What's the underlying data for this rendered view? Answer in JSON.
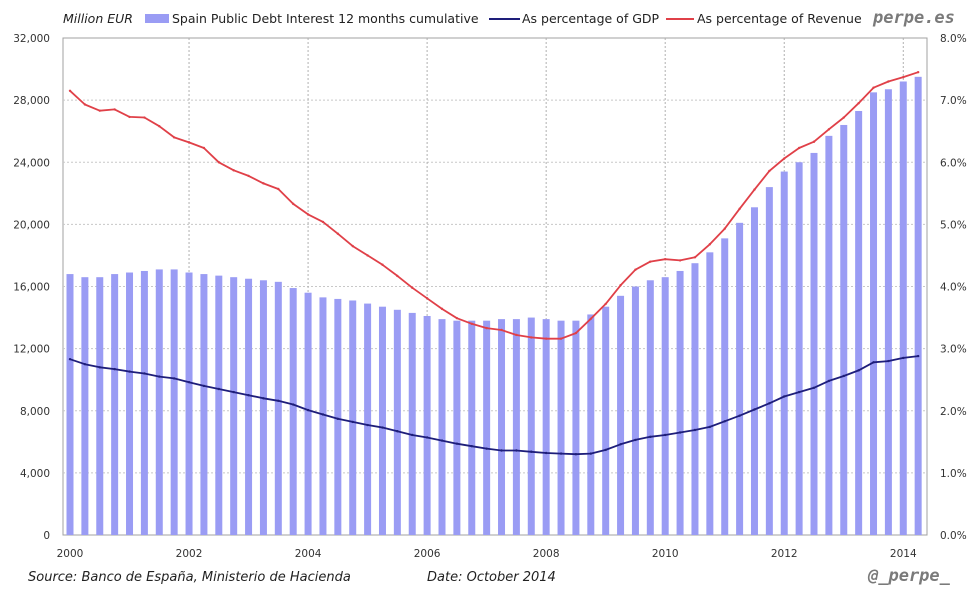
{
  "chart_data": {
    "type": "bar",
    "title": "",
    "unit_label": "Million EUR",
    "brand": "perpe.es",
    "handle": "@_perpe_",
    "source": "Source: Banco de España, Ministerio de Hacienda",
    "date": "Date: October 2014",
    "x_tick_labels": [
      "2000",
      "2002",
      "2004",
      "2006",
      "2008",
      "2010",
      "2012",
      "2014"
    ],
    "y_left": {
      "range": [
        0,
        32000
      ],
      "tick_labels": [
        "0",
        "4,000",
        "8,000",
        "12,000",
        "16,000",
        "20,000",
        "24,000",
        "28,000",
        "32,000"
      ]
    },
    "y_right": {
      "range": [
        0,
        8
      ],
      "tick_labels": [
        "0.0%",
        "1.0%",
        "2.0%",
        "3.0%",
        "4.0%",
        "5.0%",
        "6.0%",
        "7.0%",
        "8.0%"
      ]
    },
    "grid": true,
    "legend_position": "top",
    "colors": {
      "bars": "#9a9cf4",
      "gdp_line": "#1e1e7a",
      "revenue_line": "#e04048",
      "grid": "#c8c8c8",
      "frame": "#a0a0a0"
    },
    "x": [
      "2000Q1",
      "2000Q2",
      "2000Q3",
      "2000Q4",
      "2001Q1",
      "2001Q2",
      "2001Q3",
      "2001Q4",
      "2002Q1",
      "2002Q2",
      "2002Q3",
      "2002Q4",
      "2003Q1",
      "2003Q2",
      "2003Q3",
      "2003Q4",
      "2004Q1",
      "2004Q2",
      "2004Q3",
      "2004Q4",
      "2005Q1",
      "2005Q2",
      "2005Q3",
      "2005Q4",
      "2006Q1",
      "2006Q2",
      "2006Q3",
      "2006Q4",
      "2007Q1",
      "2007Q2",
      "2007Q3",
      "2007Q4",
      "2008Q1",
      "2008Q2",
      "2008Q3",
      "2008Q4",
      "2009Q1",
      "2009Q2",
      "2009Q3",
      "2009Q4",
      "2010Q1",
      "2010Q2",
      "2010Q3",
      "2010Q4",
      "2011Q1",
      "2011Q2",
      "2011Q3",
      "2011Q4",
      "2012Q1",
      "2012Q2",
      "2012Q3",
      "2012Q4",
      "2013Q1",
      "2013Q2",
      "2013Q3",
      "2013Q4",
      "2014Q1",
      "2014Q2"
    ],
    "series": [
      {
        "name": "Spain Public Debt Interest 12 months cumulative",
        "kind": "bar",
        "axis": "left",
        "values": [
          16800,
          16600,
          16600,
          16800,
          16900,
          17000,
          17100,
          17100,
          16900,
          16800,
          16700,
          16600,
          16500,
          16400,
          16300,
          15900,
          15600,
          15300,
          15200,
          15100,
          14900,
          14700,
          14500,
          14300,
          14100,
          13900,
          13800,
          13800,
          13800,
          13900,
          13900,
          14000,
          13900,
          13800,
          13800,
          14200,
          14700,
          15400,
          16000,
          16400,
          16600,
          17000,
          17500,
          18200,
          19100,
          20100,
          21100,
          22400,
          23400,
          24000,
          24600,
          25700,
          26400,
          27300,
          28500,
          28700,
          29200,
          29500
        ]
      },
      {
        "name": "As percentage of GDP",
        "kind": "line",
        "axis": "right",
        "values": [
          2.83,
          2.75,
          2.7,
          2.67,
          2.63,
          2.6,
          2.55,
          2.52,
          2.46,
          2.4,
          2.35,
          2.3,
          2.25,
          2.2,
          2.16,
          2.1,
          2.01,
          1.94,
          1.87,
          1.82,
          1.77,
          1.73,
          1.67,
          1.61,
          1.57,
          1.52,
          1.47,
          1.43,
          1.39,
          1.36,
          1.36,
          1.34,
          1.32,
          1.31,
          1.3,
          1.31,
          1.37,
          1.46,
          1.53,
          1.58,
          1.61,
          1.65,
          1.69,
          1.74,
          1.83,
          1.92,
          2.02,
          2.12,
          2.23,
          2.3,
          2.37,
          2.48,
          2.56,
          2.65,
          2.78,
          2.8,
          2.85,
          2.88
        ]
      },
      {
        "name": "As percentage of Revenue",
        "kind": "line",
        "axis": "right",
        "values": [
          7.15,
          6.93,
          6.83,
          6.85,
          6.73,
          6.72,
          6.58,
          6.4,
          6.32,
          6.23,
          6.0,
          5.87,
          5.78,
          5.66,
          5.57,
          5.33,
          5.16,
          5.04,
          4.85,
          4.65,
          4.5,
          4.35,
          4.17,
          3.98,
          3.81,
          3.64,
          3.49,
          3.4,
          3.33,
          3.3,
          3.22,
          3.18,
          3.16,
          3.16,
          3.25,
          3.48,
          3.72,
          4.02,
          4.27,
          4.4,
          4.44,
          4.42,
          4.47,
          4.68,
          4.93,
          5.25,
          5.56,
          5.86,
          6.06,
          6.23,
          6.33,
          6.53,
          6.72,
          6.95,
          7.2,
          7.3,
          7.37,
          7.45
        ]
      }
    ]
  }
}
